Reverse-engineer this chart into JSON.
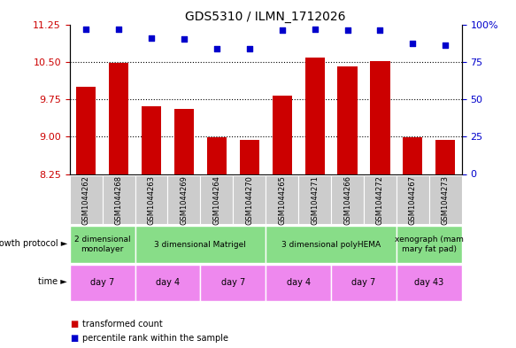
{
  "title": "GDS5310 / ILMN_1712026",
  "samples": [
    "GSM1044262",
    "GSM1044268",
    "GSM1044263",
    "GSM1044269",
    "GSM1044264",
    "GSM1044270",
    "GSM1044265",
    "GSM1044271",
    "GSM1044266",
    "GSM1044272",
    "GSM1044267",
    "GSM1044273"
  ],
  "bar_values": [
    10.0,
    10.47,
    9.6,
    9.55,
    8.98,
    8.93,
    9.82,
    10.58,
    10.4,
    10.52,
    8.98,
    8.93
  ],
  "scatter_values": [
    97,
    97,
    91,
    90,
    84,
    84,
    96,
    97,
    96,
    96,
    87,
    86
  ],
  "ylim_left": [
    8.25,
    11.25
  ],
  "ylim_right": [
    0,
    100
  ],
  "yticks_left": [
    8.25,
    9.0,
    9.75,
    10.5,
    11.25
  ],
  "yticks_right": [
    0,
    25,
    50,
    75,
    100
  ],
  "bar_color": "#cc0000",
  "scatter_color": "#0000cc",
  "growth_protocol_groups": [
    {
      "label": "2 dimensional\nmonolayer",
      "start": 0,
      "end": 2,
      "color": "#99ee99"
    },
    {
      "label": "3 dimensional Matrigel",
      "start": 2,
      "end": 6,
      "color": "#99ee99"
    },
    {
      "label": "3 dimensional polyHEMA",
      "start": 6,
      "end": 10,
      "color": "#55cc55"
    },
    {
      "label": "xenograph (mam\nmary fat pad)",
      "start": 10,
      "end": 12,
      "color": "#99ee99"
    }
  ],
  "time_groups": [
    {
      "label": "day 7",
      "start": 0,
      "end": 2,
      "color": "#ee88ee"
    },
    {
      "label": "day 4",
      "start": 2,
      "end": 4,
      "color": "#ee88ee"
    },
    {
      "label": "day 7",
      "start": 4,
      "end": 6,
      "color": "#ee88ee"
    },
    {
      "label": "day 4",
      "start": 6,
      "end": 8,
      "color": "#ee88ee"
    },
    {
      "label": "day 7",
      "start": 8,
      "end": 10,
      "color": "#ee88ee"
    },
    {
      "label": "day 43",
      "start": 10,
      "end": 12,
      "color": "#ee44ee"
    }
  ],
  "growth_label": "growth protocol",
  "time_label": "time",
  "legend_bar_label": "transformed count",
  "legend_scatter_label": "percentile rank within the sample",
  "sample_bg_color": "#cccccc",
  "ytick_left_color": "#cc0000",
  "ytick_right_color": "#0000cc",
  "fig_width": 5.83,
  "fig_height": 3.93,
  "fig_dpi": 100
}
